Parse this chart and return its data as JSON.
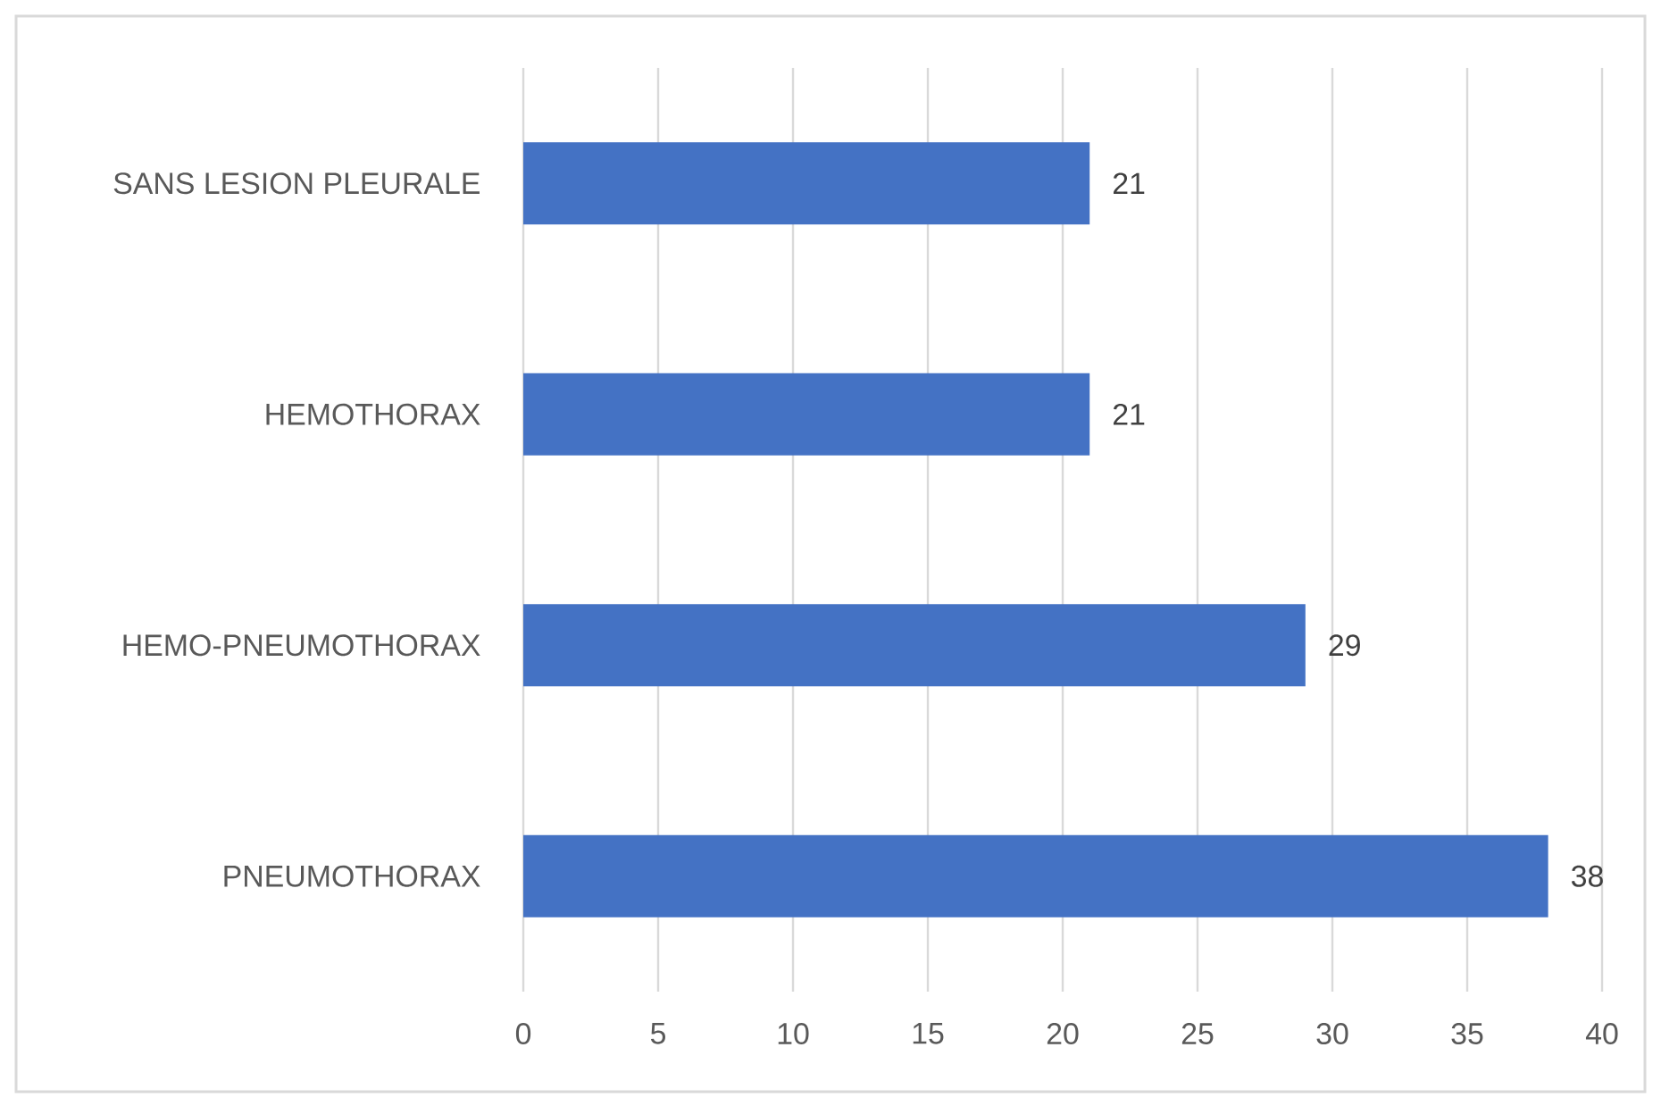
{
  "chart_data": {
    "type": "bar",
    "orientation": "horizontal",
    "categories": [
      "SANS LESION PLEURALE",
      "HEMOTHORAX",
      "HEMO-PNEUMOTHORAX",
      "PNEUMOTHORAX"
    ],
    "values": [
      21,
      21,
      29,
      38
    ],
    "color": "#4472c4",
    "xlim": [
      0,
      40
    ],
    "xticks": [
      0,
      5,
      10,
      15,
      20,
      25,
      30,
      35,
      40
    ],
    "grid": "x",
    "data_labels": true
  }
}
